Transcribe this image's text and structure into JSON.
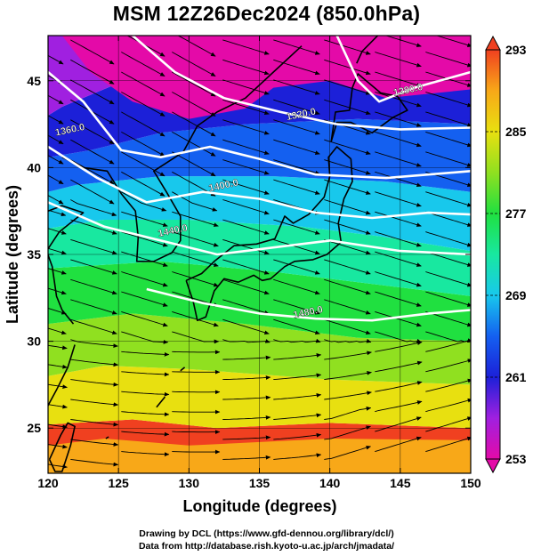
{
  "title": "MSM 12Z26Dec2024 (850.0hPa)",
  "xaxis": {
    "label": "Longitude (degrees)",
    "min": 120,
    "max": 150,
    "ticks": [
      120,
      125,
      130,
      135,
      140,
      145,
      150
    ],
    "tick_labels": [
      "120",
      "125",
      "130",
      "135",
      "140",
      "145",
      "150"
    ]
  },
  "yaxis": {
    "label": "Latitude  (degrees)",
    "min": 22.4,
    "max": 47.6,
    "ticks": [
      25,
      30,
      35,
      40,
      45
    ],
    "tick_labels": [
      "25",
      "30",
      "35",
      "40",
      "45"
    ]
  },
  "colorbar": {
    "min": 253,
    "max": 293,
    "tick_values": [
      253,
      261,
      269,
      277,
      285,
      293
    ],
    "tick_labels": [
      "253",
      "261",
      "269",
      "277",
      "285",
      "293"
    ],
    "colors": [
      "#e40aa8",
      "#a020e0",
      "#1c20d8",
      "#1460f0",
      "#18c8ec",
      "#18e8a0",
      "#20e040",
      "#90e020",
      "#e8e010",
      "#f8a818",
      "#f04020"
    ]
  },
  "contours": [
    {
      "value": 1280.0,
      "label": "1280.0"
    },
    {
      "value": 1320.0,
      "label": "1320.0"
    },
    {
      "value": 1360.0,
      "label": "1360.0"
    },
    {
      "value": 1400.0,
      "label": "1400.0"
    },
    {
      "value": 1440.0,
      "label": "1440.0"
    },
    {
      "value": 1480.0,
      "label": "1480.0"
    }
  ],
  "credits": {
    "line1": "Drawing by DCL (https://www.gfd-dennou.org/library/dcl/)",
    "line2": "Data from http://database.rish.kyoto-u.ac.jp/arch/jmadata/"
  },
  "colors": {
    "contour": "#ffffff",
    "coast": "#000000",
    "streamline": "#000000"
  }
}
